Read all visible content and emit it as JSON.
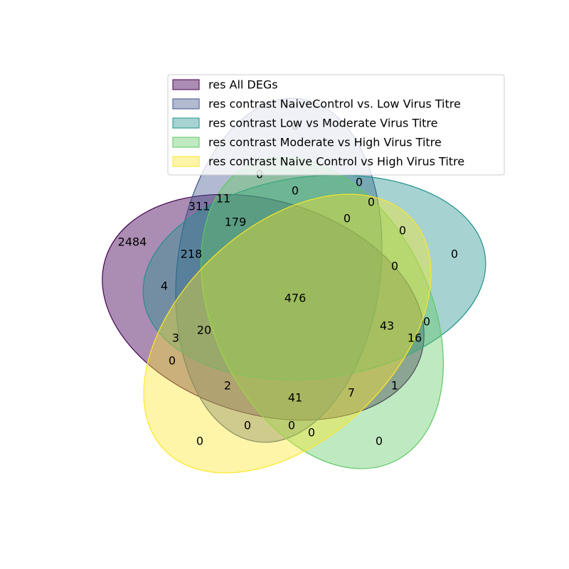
{
  "sets": [
    {
      "name": "res All DEGs",
      "color": "#440154"
    },
    {
      "name": "res contrast NaiveControl vs. Low Virus Titre",
      "color": "#3b528b"
    },
    {
      "name": "res contrast Low vs Moderate Virus Titre",
      "color": "#21918c"
    },
    {
      "name": "res contrast Moderate vs High Virus Titre",
      "color": "#5ec962"
    },
    {
      "name": "res contrast Naive Control vs High Virus Titre",
      "color": "#fde725"
    }
  ],
  "regions": [
    {
      "value": "2484"
    },
    {
      "value": "311"
    },
    {
      "value": "11"
    },
    {
      "value": "0"
    },
    {
      "value": "0"
    },
    {
      "value": "0"
    },
    {
      "value": "0"
    },
    {
      "value": "0"
    },
    {
      "value": "0"
    },
    {
      "value": "179"
    },
    {
      "value": "0"
    },
    {
      "value": "218"
    },
    {
      "value": "0"
    },
    {
      "value": "0"
    },
    {
      "value": "4"
    },
    {
      "value": "476"
    },
    {
      "value": "43"
    },
    {
      "value": "0"
    },
    {
      "value": "16"
    },
    {
      "value": "20"
    },
    {
      "value": "3"
    },
    {
      "value": "0"
    },
    {
      "value": "2"
    },
    {
      "value": "1"
    },
    {
      "value": "7"
    },
    {
      "value": "41"
    },
    {
      "value": "0"
    },
    {
      "value": "0"
    },
    {
      "value": "0"
    },
    {
      "value": "0"
    },
    {
      "value": "0"
    },
    {
      "value": "0"
    }
  ]
}
